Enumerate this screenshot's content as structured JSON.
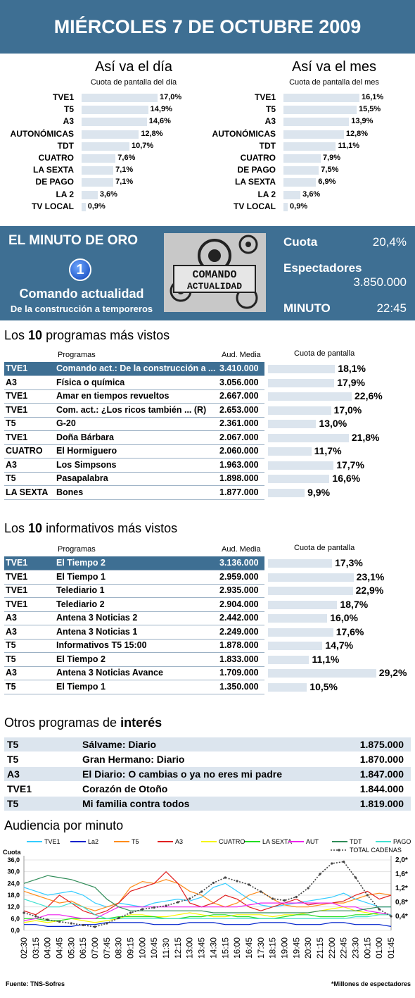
{
  "header": {
    "title": "MIÉRCOLES 7 DE OCTUBRE 2009"
  },
  "day": {
    "title": "Así va el día",
    "subtitle": "Cuota de pantalla del día",
    "items": [
      {
        "label": "TVE1",
        "value": 17.0,
        "text": "17,0%"
      },
      {
        "label": "T5",
        "value": 14.9,
        "text": "14,9%"
      },
      {
        "label": "A3",
        "value": 14.6,
        "text": "14,6%"
      },
      {
        "label": "AUTONÓMICAS",
        "value": 12.8,
        "text": "12,8%"
      },
      {
        "label": "TDT",
        "value": 10.7,
        "text": "10,7%"
      },
      {
        "label": "CUATRO",
        "value": 7.6,
        "text": "7,6%"
      },
      {
        "label": "LA SEXTA",
        "value": 7.1,
        "text": "7,1%"
      },
      {
        "label": "DE PAGO",
        "value": 7.1,
        "text": "7,1%"
      },
      {
        "label": "LA 2",
        "value": 3.6,
        "text": "3,6%"
      },
      {
        "label": "TV LOCAL",
        "value": 0.9,
        "text": "0,9%"
      }
    ]
  },
  "month": {
    "title": "Así va el mes",
    "subtitle": "Cuota de pantalla del mes",
    "items": [
      {
        "label": "TVE1",
        "value": 16.1,
        "text": "16,1%"
      },
      {
        "label": "T5",
        "value": 15.5,
        "text": "15,5%"
      },
      {
        "label": "A3",
        "value": 13.9,
        "text": "13,9%"
      },
      {
        "label": "AUTONÓMICAS",
        "value": 12.8,
        "text": "12,8%"
      },
      {
        "label": "TDT",
        "value": 11.1,
        "text": "11,1%"
      },
      {
        "label": "CUATRO",
        "value": 7.9,
        "text": "7,9%"
      },
      {
        "label": "DE PAGO",
        "value": 7.5,
        "text": "7,5%"
      },
      {
        "label": "LA SEXTA",
        "value": 6.9,
        "text": "6,9%"
      },
      {
        "label": "LA 2",
        "value": 3.6,
        "text": "3,6%"
      },
      {
        "label": "TV LOCAL",
        "value": 0.9,
        "text": "0,9%"
      }
    ]
  },
  "golden": {
    "title": "EL MINUTO DE ORO",
    "channel_logo": "1",
    "program": "Comando actualidad",
    "episode": "De la construcción a temporeros",
    "image_text": [
      "COMANDO",
      "ACTUALIDAD"
    ],
    "share_label": "Cuota",
    "share": "20,4%",
    "viewers_label": "Espectadores",
    "viewers": "3.850.000",
    "minute_label": "MINUTO",
    "minute": "22:45"
  },
  "top_programs": {
    "title_pre": "Los ",
    "title_num": "10",
    "title_post": " programas más vistos",
    "col_programs": "Programas",
    "col_aud": "Aud. Media",
    "col_share": "Cuota de pantalla",
    "rows": [
      {
        "ch": "TVE1",
        "name": "Comando act.: De la construcción a ...",
        "aud": "3.410.000",
        "share": 18.1,
        "share_text": "18,1%"
      },
      {
        "ch": "A3",
        "name": "Física o química",
        "aud": "3.056.000",
        "share": 17.9,
        "share_text": "17,9%"
      },
      {
        "ch": "TVE1",
        "name": "Amar en tiempos revueltos",
        "aud": "2.667.000",
        "share": 22.6,
        "share_text": "22,6%"
      },
      {
        "ch": "TVE1",
        "name": "Com. act.: ¿Los ricos también ... (R)",
        "aud": "2.653.000",
        "share": 17.0,
        "share_text": "17,0%"
      },
      {
        "ch": "T5",
        "name": "G-20",
        "aud": "2.361.000",
        "share": 13.0,
        "share_text": "13,0%"
      },
      {
        "ch": "TVE1",
        "name": "Doña Bárbara",
        "aud": "2.067.000",
        "share": 21.8,
        "share_text": "21,8%"
      },
      {
        "ch": "CUATRO",
        "name": "El Hormiguero",
        "aud": "2.060.000",
        "share": 11.7,
        "share_text": "11,7%"
      },
      {
        "ch": "A3",
        "name": "Los Simpsons",
        "aud": "1.963.000",
        "share": 17.7,
        "share_text": "17,7%"
      },
      {
        "ch": "T5",
        "name": "Pasapalabra",
        "aud": "1.898.000",
        "share": 16.6,
        "share_text": "16,6%"
      },
      {
        "ch": "LA SEXTA",
        "name": "Bones",
        "aud": "1.877.000",
        "share": 9.9,
        "share_text": "9,9%"
      }
    ]
  },
  "top_news": {
    "title_pre": "Los ",
    "title_num": "10",
    "title_post": " informativos más vistos",
    "col_programs": "Programas",
    "col_aud": "Aud. Media",
    "col_share": "Cuota de pantalla",
    "rows": [
      {
        "ch": "TVE1",
        "name": "El Tiempo 2",
        "aud": "3.136.000",
        "share": 17.3,
        "share_text": "17,3%"
      },
      {
        "ch": "TVE1",
        "name": "El Tiempo 1",
        "aud": "2.959.000",
        "share": 23.1,
        "share_text": "23,1%"
      },
      {
        "ch": "TVE1",
        "name": "Telediario 1",
        "aud": "2.935.000",
        "share": 22.9,
        "share_text": "22,9%"
      },
      {
        "ch": "TVE1",
        "name": "Telediario 2",
        "aud": "2.904.000",
        "share": 18.7,
        "share_text": "18,7%"
      },
      {
        "ch": "A3",
        "name": "Antena 3 Noticias 2",
        "aud": "2.442.000",
        "share": 16.0,
        "share_text": "16,0%"
      },
      {
        "ch": "A3",
        "name": "Antena 3 Noticias 1",
        "aud": "2.249.000",
        "share": 17.6,
        "share_text": "17,6%"
      },
      {
        "ch": "T5",
        "name": "Informativos T5 15:00",
        "aud": "1.878.000",
        "share": 14.7,
        "share_text": "14,7%"
      },
      {
        "ch": "T5",
        "name": "El Tiempo 2",
        "aud": "1.833.000",
        "share": 11.1,
        "share_text": "11,1%"
      },
      {
        "ch": "A3",
        "name": "Antena 3 Noticias Avance",
        "aud": "1.709.000",
        "share": 29.2,
        "share_text": "29,2%"
      },
      {
        "ch": "T5",
        "name": "El Tiempo 1",
        "aud": "1.350.000",
        "share": 10.5,
        "share_text": "10,5%"
      }
    ]
  },
  "others": {
    "title_pre": "Otros programas de ",
    "title_bold": "interés",
    "rows": [
      {
        "ch": "T5",
        "name": "Sálvame: Diario",
        "aud": "1.875.000"
      },
      {
        "ch": "T5",
        "name": "Gran Hermano: Diario",
        "aud": "1.870.000"
      },
      {
        "ch": "A3",
        "name": "El Diario:  O cambias o ya no eres mi padre",
        "aud": "1.847.000"
      },
      {
        "ch": "TVE1",
        "name": "Corazón de Otoño",
        "aud": "1.844.000"
      },
      {
        "ch": "T5",
        "name": "Mi familia contra todos",
        "aud": "1.819.000"
      }
    ]
  },
  "minute_chart": {
    "title": "Audiencia por minuto",
    "left_axis_title": "Cuota",
    "footer_source": "Fuente: TNS-Sofres",
    "footer_note": "*Millones de espectadores"
  },
  "chart_data": [
    {
      "type": "bar",
      "title": "Así va el día",
      "subtitle": "Cuota de pantalla del día",
      "categories": [
        "TVE1",
        "T5",
        "A3",
        "AUTONÓMICAS",
        "TDT",
        "CUATRO",
        "LA SEXTA",
        "DE PAGO",
        "LA 2",
        "TV LOCAL"
      ],
      "values": [
        17.0,
        14.9,
        14.6,
        12.8,
        10.7,
        7.6,
        7.1,
        7.1,
        3.6,
        0.9
      ]
    },
    {
      "type": "bar",
      "title": "Así va el mes",
      "subtitle": "Cuota de pantalla del mes",
      "categories": [
        "TVE1",
        "T5",
        "A3",
        "AUTONÓMICAS",
        "TDT",
        "CUATRO",
        "DE PAGO",
        "LA SEXTA",
        "LA 2",
        "TV LOCAL"
      ],
      "values": [
        16.1,
        15.5,
        13.9,
        12.8,
        11.1,
        7.9,
        7.5,
        6.9,
        3.6,
        0.9
      ]
    },
    {
      "type": "line",
      "title": "Audiencia por minuto",
      "ylabel": "Cuota",
      "ylim": [
        0,
        36
      ],
      "yticks": [
        "0,0",
        "6,0",
        "12,0",
        "18,0",
        "24,0",
        "30,0",
        "36,0"
      ],
      "y2ticks": [
        "0,4*",
        "0,8*",
        "1,2*",
        "1,6*",
        "2,0*"
      ],
      "y2lim": [
        0,
        2.0
      ],
      "x": [
        "02:30",
        "03:15",
        "04:00",
        "04:45",
        "05:30",
        "06:15",
        "07:00",
        "07:45",
        "08:30",
        "09:15",
        "10:00",
        "10:45",
        "11:30",
        "12:15",
        "13:00",
        "13:45",
        "14:30",
        "15:15",
        "16:00",
        "16:45",
        "17:30",
        "18:15",
        "19:00",
        "19:45",
        "20:30",
        "21:15",
        "22:00",
        "22:45",
        "23:30",
        "00:15",
        "01:00",
        "01:45"
      ],
      "series": [
        {
          "name": "TVE1",
          "color": "#33ccff",
          "values": [
            22,
            20,
            18,
            19,
            20,
            18,
            14,
            12,
            14,
            13,
            12,
            14,
            15,
            16,
            15,
            17,
            22,
            24,
            20,
            16,
            13,
            12,
            13,
            14,
            15,
            16,
            17,
            19,
            16,
            14,
            12,
            12
          ]
        },
        {
          "name": "La2",
          "color": "#0022cc",
          "values": [
            3,
            3,
            2,
            2,
            2,
            3,
            3,
            4,
            4,
            4,
            4,
            3,
            3,
            3,
            4,
            4,
            4,
            3,
            3,
            3,
            4,
            4,
            4,
            3,
            3,
            3,
            4,
            4,
            3,
            3,
            3,
            2
          ]
        },
        {
          "name": "T5",
          "color": "#ff8c1a",
          "values": [
            20,
            18,
            16,
            14,
            15,
            12,
            10,
            12,
            14,
            22,
            25,
            24,
            26,
            24,
            20,
            18,
            14,
            12,
            14,
            18,
            20,
            16,
            13,
            12,
            12,
            13,
            14,
            14,
            16,
            18,
            19,
            18
          ]
        },
        {
          "name": "A3",
          "color": "#e02020",
          "values": [
            10,
            8,
            12,
            18,
            14,
            10,
            8,
            10,
            14,
            20,
            22,
            24,
            30,
            24,
            14,
            12,
            14,
            18,
            16,
            12,
            10,
            12,
            14,
            16,
            13,
            14,
            14,
            15,
            18,
            20,
            16,
            18
          ]
        },
        {
          "name": "CUATRO",
          "color": "#f5f500",
          "values": [
            4,
            5,
            4,
            5,
            6,
            5,
            4,
            5,
            6,
            8,
            8,
            7,
            7,
            8,
            9,
            8,
            7,
            7,
            8,
            8,
            8,
            7,
            8,
            8,
            9,
            10,
            11,
            12,
            10,
            9,
            8,
            8
          ]
        },
        {
          "name": "LA SEXTA",
          "color": "#22dd22",
          "values": [
            6,
            6,
            5,
            5,
            6,
            6,
            6,
            6,
            7,
            7,
            7,
            7,
            6,
            6,
            7,
            7,
            8,
            8,
            7,
            7,
            6,
            6,
            7,
            8,
            8,
            7,
            7,
            7,
            8,
            8,
            9,
            8
          ]
        },
        {
          "name": "AUT",
          "color": "#ee22ee",
          "values": [
            5,
            6,
            8,
            8,
            7,
            6,
            6,
            9,
            12,
            12,
            12,
            12,
            12,
            12,
            12,
            12,
            12,
            12,
            12,
            13,
            14,
            14,
            14,
            14,
            14,
            14,
            14,
            12,
            12,
            10,
            9,
            8
          ]
        },
        {
          "name": "TDT",
          "color": "#2e8b57",
          "values": [
            24,
            26,
            28,
            27,
            26,
            24,
            22,
            16,
            12,
            10,
            10,
            10,
            10,
            10,
            10,
            10,
            9,
            9,
            9,
            9,
            9,
            9,
            9,
            9,
            9,
            10,
            10,
            10,
            10,
            11,
            12,
            12
          ]
        },
        {
          "name": "PAGO",
          "color": "#40e0d0",
          "values": [
            16,
            14,
            12,
            12,
            14,
            12,
            8,
            6,
            6,
            6,
            6,
            6,
            6,
            6,
            6,
            6,
            6,
            6,
            6,
            6,
            6,
            6,
            6,
            6,
            6,
            6,
            6,
            6,
            7,
            7,
            8,
            8
          ]
        },
        {
          "name": "TOTAL CADENAS",
          "color": "#444444",
          "axis": "right",
          "values": [
            0.5,
            0.4,
            0.3,
            0.25,
            0.2,
            0.15,
            0.1,
            0.2,
            0.35,
            0.5,
            0.6,
            0.65,
            0.7,
            0.8,
            0.9,
            1.1,
            1.35,
            1.5,
            1.4,
            1.3,
            1.1,
            0.9,
            0.85,
            0.95,
            1.2,
            1.6,
            1.9,
            1.95,
            1.5,
            1.0,
            0.6,
            0.4
          ]
        }
      ]
    }
  ]
}
